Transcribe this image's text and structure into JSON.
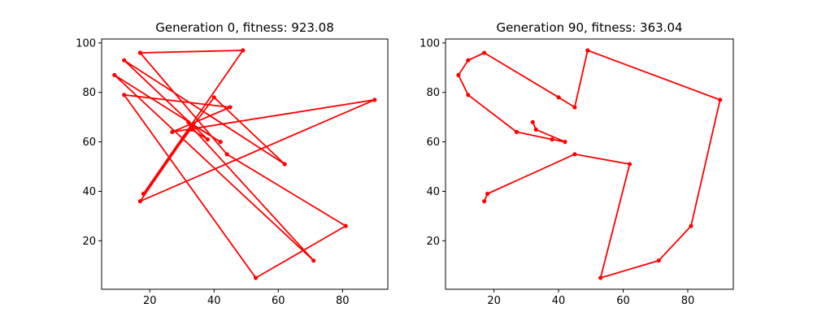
{
  "chart_data": [
    {
      "type": "line",
      "title": "Generation 0, fitness: 923.08",
      "xlabel": "",
      "ylabel": "",
      "xlim": [
        5.0,
        94.1
      ],
      "ylim": [
        0.4,
        101.6
      ],
      "xticks": [
        "20",
        "40",
        "60",
        "80"
      ],
      "yticks": [
        "20",
        "40",
        "60",
        "80",
        "100"
      ],
      "grid": false,
      "color": "#ff0000",
      "x": [
        17,
        49,
        18,
        40,
        62,
        12,
        38,
        33,
        32,
        42,
        9,
        71,
        33,
        17,
        90,
        27,
        45,
        12,
        53,
        81,
        44,
        17
      ],
      "y": [
        96,
        97,
        39,
        78,
        51,
        93,
        61,
        65,
        68,
        60,
        87,
        12,
        66,
        36,
        77,
        64,
        74,
        79,
        5,
        26,
        55,
        96
      ]
    },
    {
      "type": "line",
      "title": "Generation 90, fitness: 363.04",
      "xlabel": "",
      "ylabel": "",
      "xlim": [
        5.0,
        94.1
      ],
      "ylim": [
        0.4,
        101.6
      ],
      "xticks": [
        "20",
        "40",
        "60",
        "80"
      ],
      "yticks": [
        "20",
        "40",
        "60",
        "80",
        "100"
      ],
      "grid": false,
      "color": "#ff0000",
      "x": [
        17,
        18,
        45,
        62,
        53,
        71,
        81,
        90,
        49,
        45,
        40,
        17,
        12,
        9,
        12,
        27,
        38,
        42,
        33,
        32
      ],
      "y": [
        36,
        39,
        55,
        51,
        5,
        12,
        26,
        77,
        97,
        74,
        78,
        96,
        93,
        87,
        79,
        64,
        61,
        60,
        65,
        68
      ]
    }
  ]
}
